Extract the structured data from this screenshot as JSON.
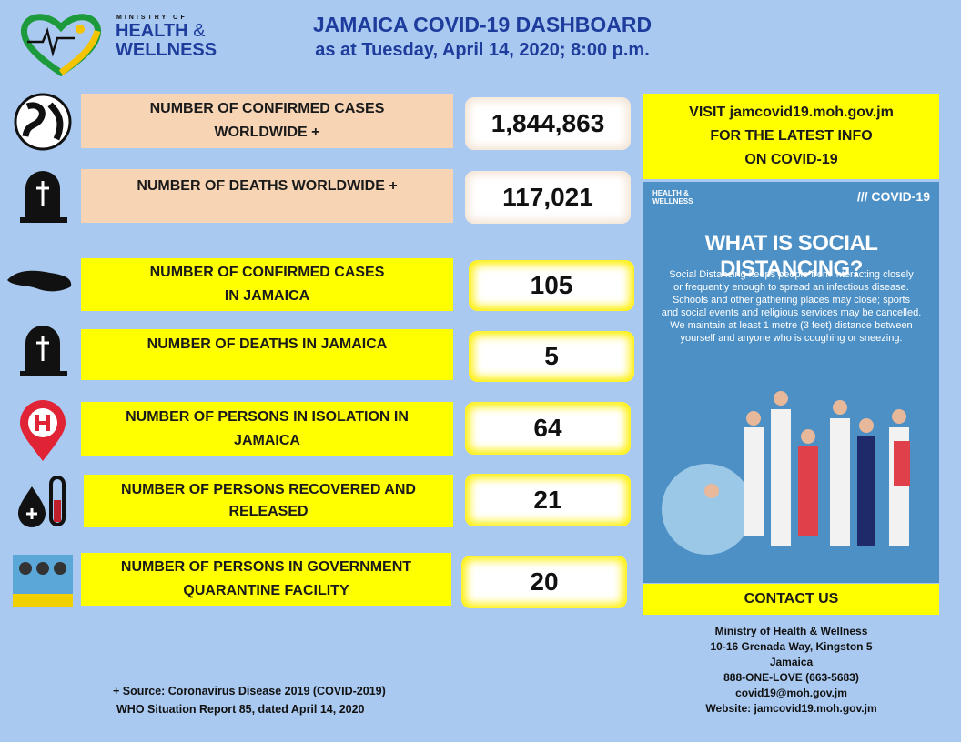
{
  "header": {
    "logo": {
      "top": "MINISTRY OF",
      "line1": "HEALTH",
      "amp": "&",
      "line2": "WELLNESS"
    },
    "title": "JAMAICA COVID-19 DASHBOARD",
    "subtitle": "as at Tuesday, April 14, 2020; 8:00 p.m."
  },
  "stats": [
    {
      "label": [
        "NUMBER OF CONFIRMED CASES",
        "WORLDWIDE +"
      ],
      "value": "1,844,863"
    },
    {
      "label": [
        "NUMBER OF DEATHS WORLDWIDE +"
      ],
      "value": "117,021"
    },
    {
      "label": [
        "NUMBER OF CONFIRMED CASES",
        "IN JAMAICA"
      ],
      "value": "105"
    },
    {
      "label": [
        "NUMBER OF DEATHS IN JAMAICA"
      ],
      "value": "5"
    },
    {
      "label": [
        "NUMBER OF PERSONS IN ISOLATION IN",
        "JAMAICA"
      ],
      "value": "64"
    },
    {
      "label": [
        "NUMBER OF PERSONS RECOVERED AND",
        "RELEASED"
      ],
      "value": "21"
    },
    {
      "label": [
        "NUMBER OF PERSONS IN GOVERNMENT",
        "QUARANTINE FACILITY"
      ],
      "value": "20"
    }
  ],
  "visit": [
    "VISIT  jamcovid19.moh.gov.jm",
    "FOR THE LATEST INFO",
    "ON COVID-19"
  ],
  "poster": {
    "logo": [
      "HEALTH &",
      "WELLNESS"
    ],
    "tag": "/// COVID-19",
    "heading": "WHAT IS SOCIAL DISTANCING?",
    "body": [
      "Social Distancing keeps people from interacting closely",
      "or frequently enough to spread an infectious disease.",
      "Schools and other gathering places may close; sports",
      "and social events and religious services may be cancelled.",
      "We maintain at least 1 metre (3 feet) distance between",
      "yourself and anyone who is coughing or sneezing."
    ]
  },
  "contact": {
    "heading": "CONTACT US",
    "lines": [
      "Ministry of Health & Wellness",
      "10-16 Grenada Way, Kingston 5",
      "Jamaica",
      "888-ONE-LOVE (663-5683)",
      "covid19@moh.gov.jm",
      "Website: jamcovid19.moh.gov.jm"
    ]
  },
  "source": [
    "+ Source: Coronavirus Disease 2019 (COVID-2019)",
    "WHO Situation Report 85, dated April 14, 2020"
  ]
}
